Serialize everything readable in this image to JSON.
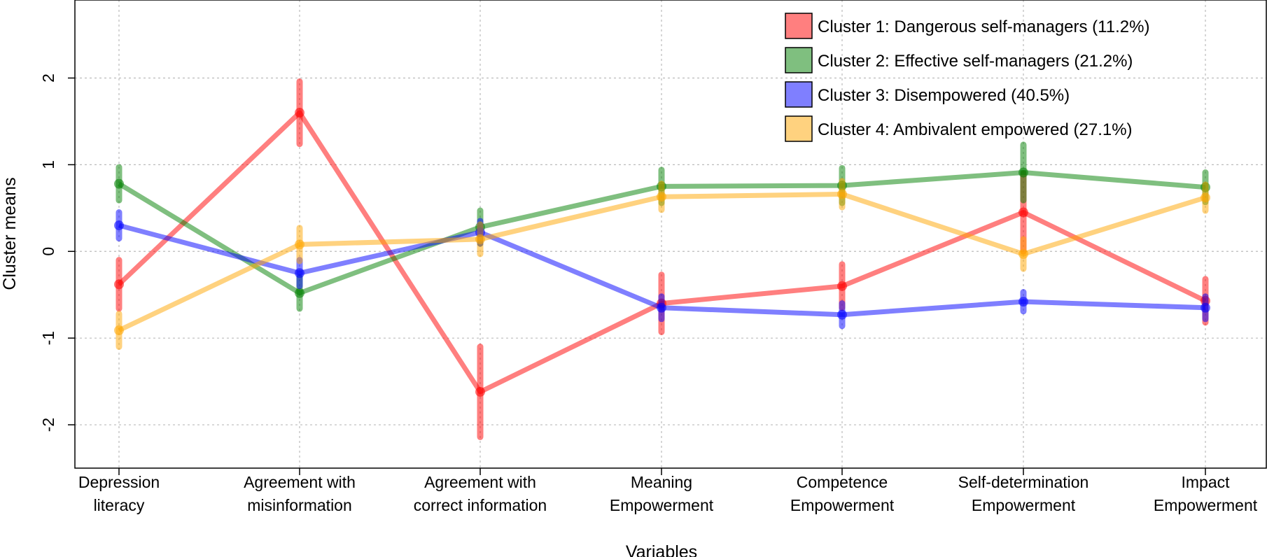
{
  "chart_data": {
    "type": "line",
    "title": "",
    "xlabel": "Variables",
    "ylabel": "Cluster means",
    "ylim": [
      -2.5,
      2.9
    ],
    "y_ticks": [
      -2,
      -1,
      0,
      1,
      2
    ],
    "y_tick_labels": [
      "-2",
      "-1",
      "0",
      "1",
      "2"
    ],
    "grid": true,
    "legend_position": "top-right",
    "categories": [
      [
        "Depression",
        "literacy"
      ],
      [
        "Agreement with",
        "misinformation"
      ],
      [
        "Agreement with",
        "correct information"
      ],
      [
        "Meaning",
        "Empowerment"
      ],
      [
        "Competence",
        "Empowerment"
      ],
      [
        "Self-determination",
        "Empowerment"
      ],
      [
        "Impact",
        "Empowerment"
      ]
    ],
    "series": [
      {
        "name": "Cluster 1: Dangerous self-managers (11.2%)",
        "color": "#ff0000",
        "values": [
          -0.38,
          1.6,
          -1.62,
          -0.6,
          -0.4,
          0.45,
          -0.57
        ],
        "errors": [
          0.28,
          0.36,
          0.52,
          0.33,
          0.25,
          0.45,
          0.25
        ]
      },
      {
        "name": "Cluster 2: Effective self-managers (21.2%)",
        "color": "#008000",
        "values": [
          0.78,
          -0.48,
          0.28,
          0.75,
          0.76,
          0.91,
          0.74
        ],
        "errors": [
          0.19,
          0.18,
          0.19,
          0.19,
          0.2,
          0.32,
          0.17
        ]
      },
      {
        "name": "Cluster 3: Disempowered (40.5%)",
        "color": "#0000ff",
        "values": [
          0.3,
          -0.25,
          0.22,
          -0.65,
          -0.73,
          -0.58,
          -0.65
        ],
        "errors": [
          0.15,
          0.15,
          0.13,
          0.13,
          0.13,
          0.11,
          0.13
        ]
      },
      {
        "name": "Cluster 4: Ambivalent empowered (27.1%)",
        "color": "#ffa500",
        "values": [
          -0.91,
          0.08,
          0.14,
          0.63,
          0.66,
          -0.03,
          0.62
        ],
        "errors": [
          0.19,
          0.19,
          0.17,
          0.15,
          0.15,
          0.17,
          0.15
        ]
      }
    ]
  }
}
